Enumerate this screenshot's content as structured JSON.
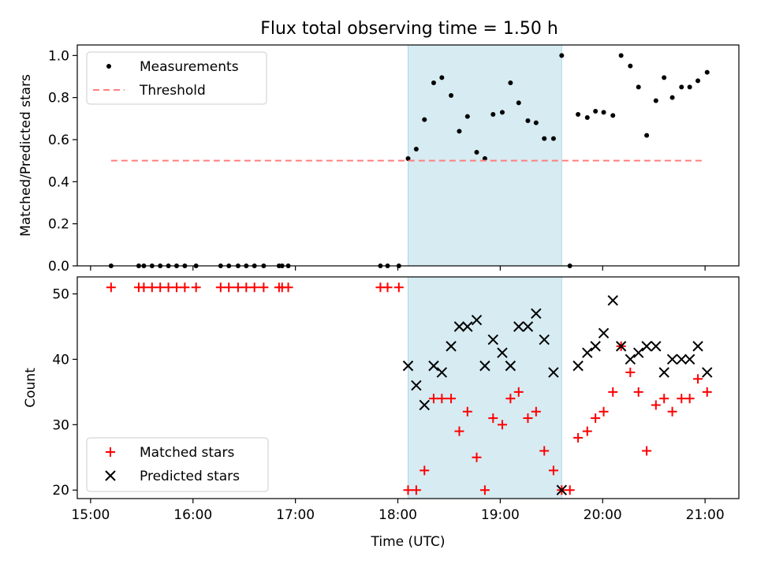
{
  "title": "Flux total observing time = 1.50 h",
  "colors": {
    "shade": "#add8e6",
    "measure": "#000000",
    "threshold": "#ff7f7f",
    "matched": "#ff0000",
    "predicted": "#000000"
  },
  "chart_data": [
    {
      "type": "scatter",
      "ylabel": "Matched/Predicted stars",
      "xlabel": "",
      "x_unit": "hours UTC",
      "xlim": [
        14.87,
        21.33
      ],
      "ylim": [
        0,
        1.05
      ],
      "yticks": [
        0.0,
        0.2,
        0.4,
        0.6,
        0.8,
        1.0
      ],
      "ytick_labels": [
        "0.0",
        "0.2",
        "0.4",
        "0.6",
        "0.8",
        "1.0"
      ],
      "shaded_span": [
        18.1,
        19.6
      ],
      "legend_position": "upper-left",
      "series": [
        {
          "name": "Measurements",
          "marker": "dot",
          "points": [
            [
              15.2,
              0
            ],
            [
              15.47,
              0
            ],
            [
              15.52,
              0
            ],
            [
              15.6,
              0
            ],
            [
              15.68,
              0
            ],
            [
              15.76,
              0
            ],
            [
              15.84,
              0
            ],
            [
              15.92,
              0
            ],
            [
              16.03,
              0
            ],
            [
              16.27,
              0
            ],
            [
              16.35,
              0
            ],
            [
              16.44,
              0
            ],
            [
              16.52,
              0
            ],
            [
              16.6,
              0
            ],
            [
              16.69,
              0
            ],
            [
              16.84,
              0
            ],
            [
              16.87,
              0
            ],
            [
              16.93,
              0
            ],
            [
              17.83,
              0
            ],
            [
              17.9,
              0
            ],
            [
              18.01,
              0
            ],
            [
              18.1,
              0.51
            ],
            [
              18.18,
              0.555
            ],
            [
              18.26,
              0.695
            ],
            [
              18.35,
              0.87
            ],
            [
              18.43,
              0.895
            ],
            [
              18.52,
              0.81
            ],
            [
              18.6,
              0.64
            ],
            [
              18.68,
              0.71
            ],
            [
              18.77,
              0.54
            ],
            [
              18.85,
              0.51
            ],
            [
              18.93,
              0.72
            ],
            [
              19.02,
              0.73
            ],
            [
              19.1,
              0.87
            ],
            [
              19.18,
              0.775
            ],
            [
              19.27,
              0.69
            ],
            [
              19.35,
              0.68
            ],
            [
              19.43,
              0.605
            ],
            [
              19.52,
              0.605
            ],
            [
              19.6,
              1.0
            ],
            [
              19.68,
              0
            ],
            [
              19.76,
              0.72
            ],
            [
              19.85,
              0.705
            ],
            [
              19.93,
              0.735
            ],
            [
              20.01,
              0.73
            ],
            [
              20.1,
              0.715
            ],
            [
              20.18,
              1.0
            ],
            [
              20.27,
              0.95
            ],
            [
              20.35,
              0.85
            ],
            [
              20.43,
              0.62
            ],
            [
              20.52,
              0.785
            ],
            [
              20.6,
              0.895
            ],
            [
              20.68,
              0.8
            ],
            [
              20.77,
              0.85
            ],
            [
              20.85,
              0.85
            ],
            [
              20.93,
              0.88
            ],
            [
              21.02,
              0.92
            ]
          ]
        },
        {
          "name": "Threshold",
          "marker": "dashed-line",
          "points": [
            [
              15.2,
              0.5
            ],
            [
              21.0,
              0.5
            ]
          ]
        }
      ]
    },
    {
      "type": "scatter",
      "ylabel": "Count",
      "xlabel": "Time (UTC)",
      "x_unit": "hours UTC",
      "xlim": [
        14.87,
        21.33
      ],
      "ylim": [
        18.7,
        52.6
      ],
      "yticks": [
        20,
        30,
        40,
        50
      ],
      "ytick_labels": [
        "20",
        "30",
        "40",
        "50"
      ],
      "xticks": [
        15,
        16,
        17,
        18,
        19,
        20,
        21
      ],
      "xtick_labels": [
        "15:00",
        "16:00",
        "17:00",
        "18:00",
        "19:00",
        "20:00",
        "21:00"
      ],
      "shaded_span": [
        18.1,
        19.6
      ],
      "legend_position": "lower-left",
      "series": [
        {
          "name": "Matched stars",
          "marker": "plus",
          "points": [
            [
              15.2,
              51
            ],
            [
              15.47,
              51
            ],
            [
              15.52,
              51
            ],
            [
              15.6,
              51
            ],
            [
              15.68,
              51
            ],
            [
              15.76,
              51
            ],
            [
              15.84,
              51
            ],
            [
              15.92,
              51
            ],
            [
              16.03,
              51
            ],
            [
              16.27,
              51
            ],
            [
              16.35,
              51
            ],
            [
              16.44,
              51
            ],
            [
              16.52,
              51
            ],
            [
              16.6,
              51
            ],
            [
              16.69,
              51
            ],
            [
              16.84,
              51
            ],
            [
              16.87,
              51
            ],
            [
              16.93,
              51
            ],
            [
              17.83,
              51
            ],
            [
              17.9,
              51
            ],
            [
              18.01,
              51
            ],
            [
              18.1,
              20
            ],
            [
              18.18,
              20
            ],
            [
              18.26,
              23
            ],
            [
              18.35,
              34
            ],
            [
              18.43,
              34
            ],
            [
              18.52,
              34
            ],
            [
              18.6,
              29
            ],
            [
              18.68,
              32
            ],
            [
              18.77,
              25
            ],
            [
              18.85,
              20
            ],
            [
              18.93,
              31
            ],
            [
              19.02,
              30
            ],
            [
              19.1,
              34
            ],
            [
              19.18,
              35
            ],
            [
              19.27,
              31
            ],
            [
              19.35,
              32
            ],
            [
              19.43,
              26
            ],
            [
              19.52,
              23
            ],
            [
              19.6,
              20
            ],
            [
              19.68,
              20
            ],
            [
              19.76,
              28
            ],
            [
              19.85,
              29
            ],
            [
              19.93,
              31
            ],
            [
              20.01,
              32
            ],
            [
              20.1,
              35
            ],
            [
              20.18,
              42
            ],
            [
              20.27,
              38
            ],
            [
              20.35,
              35
            ],
            [
              20.43,
              26
            ],
            [
              20.52,
              33
            ],
            [
              20.6,
              34
            ],
            [
              20.68,
              32
            ],
            [
              20.77,
              34
            ],
            [
              20.85,
              34
            ],
            [
              20.93,
              37
            ],
            [
              21.02,
              35
            ]
          ]
        },
        {
          "name": "Predicted stars",
          "marker": "x",
          "points": [
            [
              18.1,
              39
            ],
            [
              18.18,
              36
            ],
            [
              18.26,
              33
            ],
            [
              18.35,
              39
            ],
            [
              18.43,
              38
            ],
            [
              18.52,
              42
            ],
            [
              18.6,
              45
            ],
            [
              18.68,
              45
            ],
            [
              18.77,
              46
            ],
            [
              18.85,
              39
            ],
            [
              18.93,
              43
            ],
            [
              19.02,
              41
            ],
            [
              19.1,
              39
            ],
            [
              19.18,
              45
            ],
            [
              19.27,
              45
            ],
            [
              19.35,
              47
            ],
            [
              19.43,
              43
            ],
            [
              19.52,
              38
            ],
            [
              19.6,
              20
            ],
            [
              19.76,
              39
            ],
            [
              19.85,
              41
            ],
            [
              19.93,
              42
            ],
            [
              20.01,
              44
            ],
            [
              20.1,
              49
            ],
            [
              20.18,
              42
            ],
            [
              20.27,
              40
            ],
            [
              20.35,
              41
            ],
            [
              20.43,
              42
            ],
            [
              20.52,
              42
            ],
            [
              20.6,
              38
            ],
            [
              20.68,
              40
            ],
            [
              20.77,
              40
            ],
            [
              20.85,
              40
            ],
            [
              20.93,
              42
            ],
            [
              21.02,
              38
            ]
          ]
        }
      ]
    }
  ]
}
